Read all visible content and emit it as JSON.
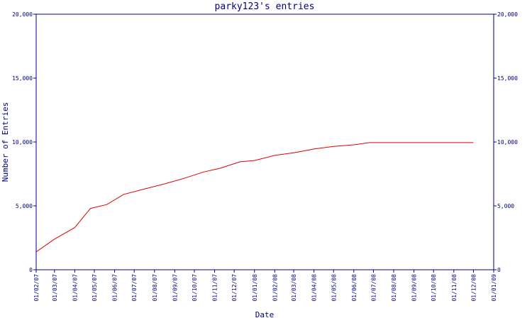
{
  "chart_data": {
    "type": "line",
    "title": "parky123's entries",
    "xlabel": "Date",
    "ylabel": "Number of Entries",
    "ylim": [
      0,
      20000
    ],
    "y_ticks": [
      {
        "value": 0,
        "label": "0"
      },
      {
        "value": 5000,
        "label": "5,000"
      },
      {
        "value": 10000,
        "label": "10,000"
      },
      {
        "value": 15000,
        "label": "15,000"
      },
      {
        "value": 20000,
        "label": "20,000"
      }
    ],
    "x_ticks": [
      "01/02/07",
      "01/03/07",
      "01/04/07",
      "01/05/07",
      "01/06/07",
      "01/07/07",
      "01/08/07",
      "01/09/07",
      "01/10/07",
      "01/11/07",
      "01/12/07",
      "01/01/08",
      "01/02/08",
      "01/03/08",
      "01/04/08",
      "01/05/08",
      "01/06/08",
      "01/07/08",
      "01/08/08",
      "01/09/08",
      "01/10/08",
      "01/11/08",
      "01/12/08",
      "01/01/09"
    ],
    "grid": false,
    "line_color": "#e00000",
    "axis_color": "#000080",
    "series": [
      {
        "x": [
          "2007-02-01",
          "2007-03-01",
          "2007-04-01",
          "2007-04-25",
          "2007-05-20",
          "2007-06-15",
          "2007-07-15",
          "2007-08-15",
          "2007-09-15",
          "2007-10-15",
          "2007-11-10",
          "2007-12-10",
          "2008-01-01",
          "2008-02-01",
          "2008-03-01",
          "2008-04-01",
          "2008-05-01",
          "2008-06-01",
          "2008-06-25",
          "2008-07-01",
          "2008-08-01",
          "2008-09-01",
          "2008-10-01",
          "2008-11-01",
          "2008-12-01"
        ],
        "y": [
          1400,
          2400,
          3300,
          4800,
          5100,
          5900,
          6300,
          6700,
          7150,
          7650,
          7950,
          8450,
          8550,
          8950,
          9150,
          9450,
          9650,
          9780,
          9950,
          9950,
          9950,
          9950,
          9950,
          9950,
          9950
        ]
      }
    ]
  }
}
